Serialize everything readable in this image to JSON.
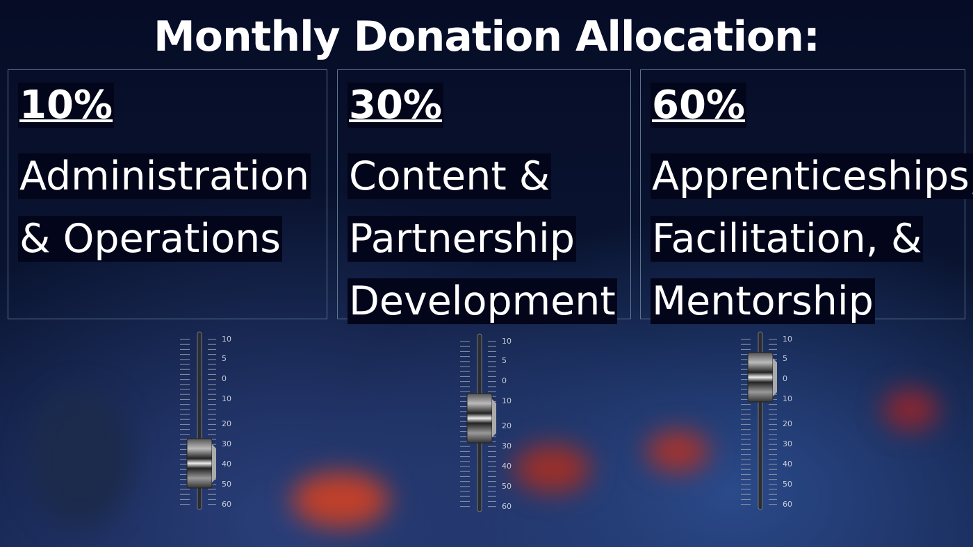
{
  "title": "Monthly Donation Allocation:",
  "cards": [
    {
      "percent": "10%",
      "lines": [
        "Administration",
        "& Operations"
      ]
    },
    {
      "percent": "30%",
      "lines": [
        "Content &",
        "Partnership",
        "Development"
      ]
    },
    {
      "percent": "60%",
      "lines": [
        "Apprenticeships,",
        "Facilitation, &",
        "Mentorship"
      ]
    }
  ],
  "fader_scale": [
    "10",
    "5",
    "0",
    "10",
    "20",
    "30",
    "40",
    "50",
    "60"
  ]
}
